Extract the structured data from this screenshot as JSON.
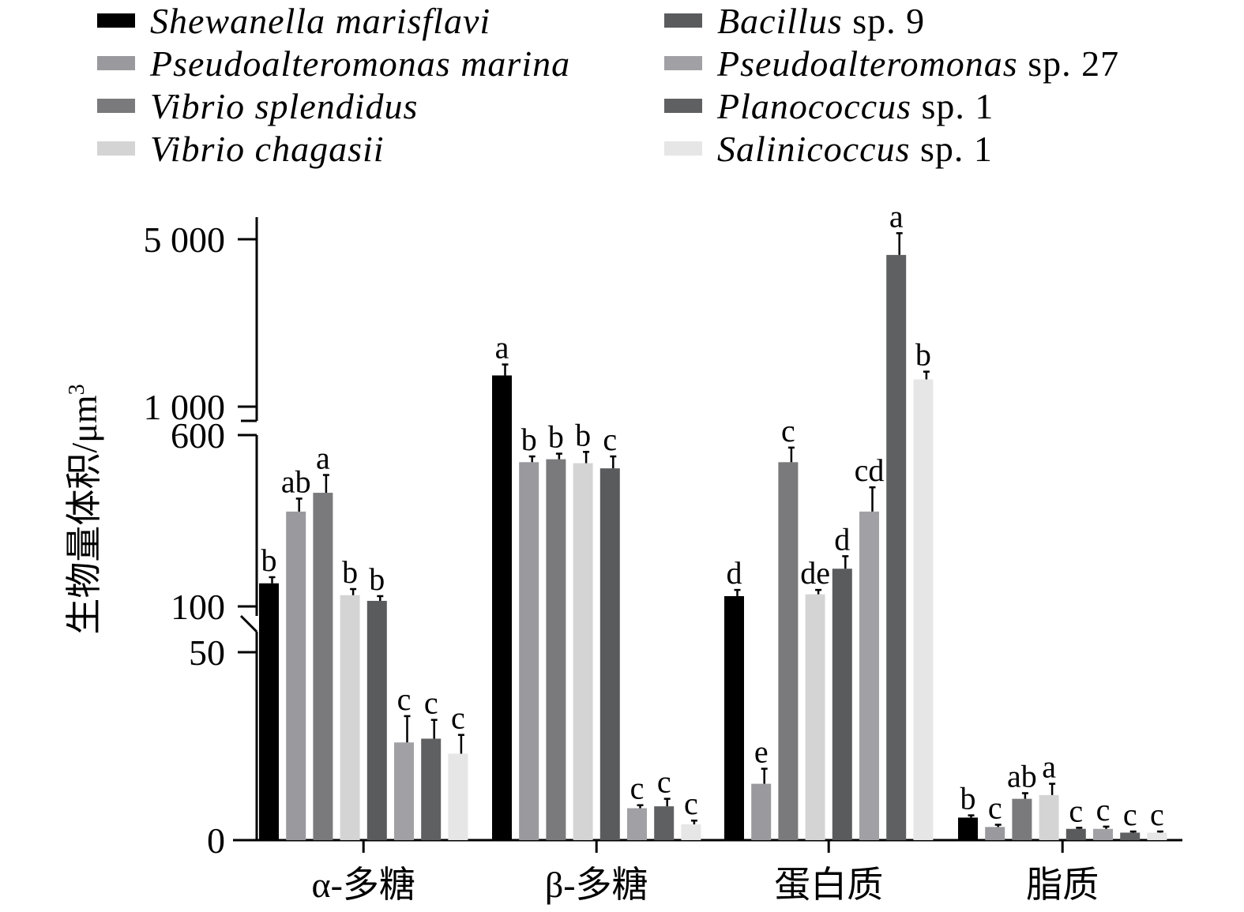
{
  "chart_data": {
    "type": "bar",
    "title": "",
    "xlabel": "",
    "ylabel": "生物量体积/μm",
    "ylabel_sup": "3",
    "y_scale": "broken axis: linear 0–50, log 50–600, log 1000–5000",
    "y_ticks": [
      "0",
      "50",
      "100",
      "600",
      "1 000",
      "5 000"
    ],
    "categories": [
      "α-多糖",
      "β-多糖",
      "蛋白质",
      "脂质"
    ],
    "legend_position": "top",
    "series": [
      {
        "name": "Shewanella marisflavi",
        "name_italic": "Shewanella marisflavi",
        "name_suffix": "",
        "color": "#000000",
        "values": [
          110,
          1350,
          95,
          6
        ],
        "errors": [
          8,
          150,
          7,
          0.6
        ],
        "letters": [
          "b",
          "a",
          "d",
          "b"
        ]
      },
      {
        "name": "Pseudoalteromonas marina",
        "name_italic": "Pseudoalteromonas marina",
        "name_suffix": "",
        "color": "#9a9a9e",
        "values": [
          250,
          440,
          15,
          3.5
        ],
        "errors": [
          40,
          30,
          4,
          0.6
        ],
        "letters": [
          "ab",
          "b",
          "e",
          "c"
        ]
      },
      {
        "name": "Vibrio splendidus",
        "name_italic": "Vibrio splendidus",
        "name_suffix": "",
        "color": "#7a7a7c",
        "values": [
          310,
          455,
          440,
          11
        ],
        "errors": [
          70,
          30,
          80,
          1.5
        ],
        "letters": [
          "a",
          "b",
          "c",
          "ab"
        ]
      },
      {
        "name": "Vibrio chagasii",
        "name_italic": "Vibrio chagasii",
        "name_suffix": "",
        "color": "#d4d4d4",
        "values": [
          96,
          435,
          97,
          12
        ],
        "errors": [
          7,
          60,
          5,
          3
        ],
        "letters": [
          "b",
          "b",
          "de",
          "a"
        ]
      },
      {
        "name": "Bacillus sp. 9",
        "name_italic": "Bacillus",
        "name_suffix": " sp. 9",
        "color": "#5a5b5d",
        "values": [
          90,
          410,
          130,
          3
        ],
        "errors": [
          5,
          60,
          20,
          0.3
        ],
        "letters": [
          "b",
          "c",
          "d",
          "c"
        ]
      },
      {
        "name": "Pseudoalteromonas sp. 27",
        "name_italic": "Pseudoalteromonas",
        "name_suffix": " sp. 27",
        "color": "#a1a1a5",
        "values": [
          26,
          8.5,
          250,
          3
        ],
        "errors": [
          7,
          0.8,
          80,
          0.6
        ],
        "letters": [
          "c",
          "c",
          "cd",
          "c"
        ]
      },
      {
        "name": "Planococcus sp. 1",
        "name_italic": "Planococcus",
        "name_suffix": " sp. 1",
        "color": "#5f6062",
        "values": [
          27,
          9,
          4300,
          2
        ],
        "errors": [
          5,
          2,
          1000,
          0.3
        ],
        "letters": [
          "c",
          "c",
          "a",
          "c"
        ]
      },
      {
        "name": "Salinicoccus sp. 1",
        "name_italic": "Salinicoccus",
        "name_suffix": " sp. 1",
        "color": "#e6e6e7",
        "values": [
          23,
          4.2,
          1300,
          2
        ],
        "errors": [
          5,
          1,
          100,
          0.3
        ],
        "letters": [
          "c",
          "c",
          "b",
          "c"
        ]
      }
    ]
  }
}
